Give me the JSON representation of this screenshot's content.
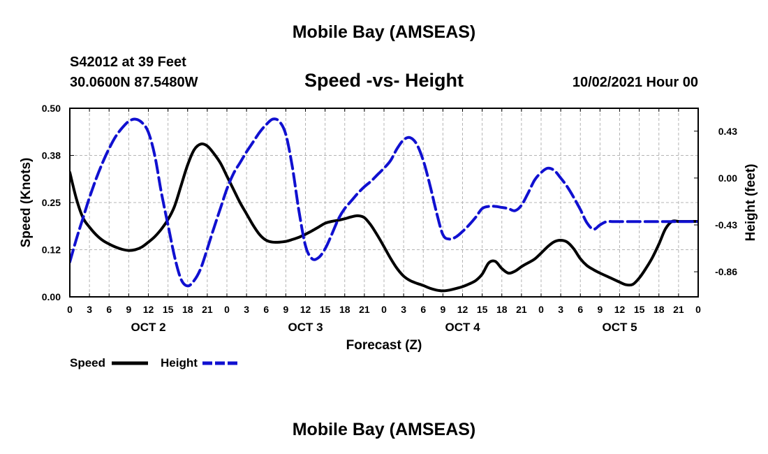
{
  "header": {
    "title": "Mobile Bay (AMSEAS)",
    "station": "S42012 at 39 Feet",
    "coords": "30.0600N  87.5480W",
    "chart_title": "Speed -vs- Height",
    "datetime": "10/02/2021 Hour 00"
  },
  "footer": {
    "title": "Mobile Bay (AMSEAS)"
  },
  "legend": {
    "speed_label": "Speed",
    "height_label": "Height"
  },
  "colors": {
    "speed": "#000000",
    "height": "#1010d0",
    "grid": "#b4b4b4"
  },
  "chart_data": {
    "type": "line",
    "title": "Speed -vs- Height",
    "xlabel": "Forecast (Z)",
    "ylabel_left": "Speed (Knots)",
    "ylabel_right": "Height (feet)",
    "x_range_hours": [
      0,
      96
    ],
    "ylim_left": [
      0,
      0.5
    ],
    "ylim_right": [
      -1.09,
      0.64
    ],
    "left_ticks": [
      "0.00",
      "0.12",
      "0.25",
      "0.38",
      "0.50"
    ],
    "left_tick_values": [
      0,
      0.125,
      0.25,
      0.375,
      0.5
    ],
    "right_ticks": [
      "-0.86",
      "-0.43",
      "0.00",
      "0.43"
    ],
    "right_tick_values": [
      -0.86,
      -0.43,
      0.0,
      0.43
    ],
    "x_ticks": [
      "0",
      "3",
      "6",
      "9",
      "12",
      "15",
      "18",
      "21",
      "0",
      "3",
      "6",
      "9",
      "12",
      "15",
      "18",
      "21",
      "0",
      "3",
      "6",
      "9",
      "12",
      "15",
      "18",
      "21",
      "0",
      "3",
      "6",
      "9",
      "12",
      "15",
      "18",
      "21",
      "0"
    ],
    "x_tick_hours": [
      0,
      3,
      6,
      9,
      12,
      15,
      18,
      21,
      24,
      27,
      30,
      33,
      36,
      39,
      42,
      45,
      48,
      51,
      54,
      57,
      60,
      63,
      66,
      69,
      72,
      75,
      78,
      81,
      84,
      87,
      90,
      93,
      96
    ],
    "day_labels": [
      "OCT 2",
      "OCT 3",
      "OCT 4",
      "OCT 5"
    ],
    "day_label_hours": [
      12,
      36,
      60,
      84
    ],
    "grid": true,
    "series": [
      {
        "name": "Speed",
        "axis": "left",
        "style": "solid",
        "x": [
          0,
          1,
          2,
          3,
          4,
          5,
          6,
          7,
          8,
          9,
          10,
          11,
          12,
          13,
          14,
          15,
          16,
          17,
          18,
          19,
          20,
          21,
          22,
          23,
          24,
          25,
          26,
          27,
          28,
          29,
          30,
          31,
          32,
          33,
          34,
          35,
          36,
          37,
          38,
          39,
          40,
          41,
          42,
          43,
          44,
          45,
          46,
          47,
          48,
          49,
          50,
          51,
          52,
          53,
          54,
          55,
          56,
          57,
          58,
          59,
          60,
          61,
          62,
          63,
          64,
          65,
          66,
          67,
          68,
          69,
          70,
          71,
          72,
          73,
          74,
          75,
          76,
          77,
          78,
          79,
          80,
          81,
          82,
          83,
          84,
          85,
          86,
          87,
          88,
          89,
          90,
          91,
          92,
          93,
          94,
          95,
          96
        ],
        "values": [
          0.33,
          0.26,
          0.21,
          0.185,
          0.165,
          0.15,
          0.14,
          0.132,
          0.126,
          0.123,
          0.125,
          0.132,
          0.145,
          0.16,
          0.18,
          0.205,
          0.24,
          0.295,
          0.35,
          0.39,
          0.405,
          0.4,
          0.38,
          0.355,
          0.32,
          0.285,
          0.25,
          0.22,
          0.19,
          0.165,
          0.15,
          0.145,
          0.145,
          0.147,
          0.152,
          0.158,
          0.166,
          0.175,
          0.185,
          0.195,
          0.2,
          0.203,
          0.207,
          0.212,
          0.215,
          0.21,
          0.19,
          0.163,
          0.133,
          0.102,
          0.075,
          0.055,
          0.043,
          0.036,
          0.03,
          0.023,
          0.018,
          0.016,
          0.018,
          0.022,
          0.027,
          0.034,
          0.043,
          0.06,
          0.09,
          0.094,
          0.075,
          0.063,
          0.068,
          0.08,
          0.09,
          0.1,
          0.116,
          0.133,
          0.146,
          0.15,
          0.145,
          0.127,
          0.101,
          0.083,
          0.072,
          0.063,
          0.055,
          0.047,
          0.039,
          0.032,
          0.033,
          0.05,
          0.075,
          0.104,
          0.14,
          0.18,
          0.2,
          0.2,
          0.2,
          0.2,
          0.2
        ]
      },
      {
        "name": "Height",
        "axis": "right",
        "style": "dashed",
        "x": [
          0,
          1,
          2,
          3,
          4,
          5,
          6,
          7,
          8,
          9,
          10,
          11,
          12,
          13,
          14,
          15,
          16,
          17,
          18,
          19,
          20,
          21,
          22,
          23,
          24,
          25,
          26,
          27,
          28,
          29,
          30,
          31,
          32,
          33,
          34,
          35,
          36,
          37,
          38,
          39,
          40,
          41,
          42,
          43,
          44,
          45,
          46,
          47,
          48,
          49,
          50,
          51,
          52,
          53,
          54,
          55,
          56,
          57,
          58,
          59,
          60,
          61,
          62,
          63,
          64,
          65,
          66,
          67,
          68,
          69,
          70,
          71,
          72,
          73,
          74,
          75,
          76,
          77,
          78,
          79,
          80,
          81,
          82,
          83,
          84,
          85,
          86,
          87,
          88,
          89,
          90,
          91,
          92,
          93,
          94,
          95,
          96
        ],
        "values": [
          -0.77,
          -0.56,
          -0.37,
          -0.18,
          -0.01,
          0.14,
          0.27,
          0.38,
          0.46,
          0.52,
          0.54,
          0.51,
          0.42,
          0.2,
          -0.14,
          -0.43,
          -0.72,
          -0.93,
          -0.99,
          -0.94,
          -0.83,
          -0.65,
          -0.46,
          -0.28,
          -0.1,
          0.04,
          0.14,
          0.24,
          0.33,
          0.42,
          0.49,
          0.54,
          0.52,
          0.4,
          0.1,
          -0.3,
          -0.62,
          -0.74,
          -0.73,
          -0.65,
          -0.52,
          -0.38,
          -0.28,
          -0.21,
          -0.14,
          -0.08,
          -0.03,
          0.03,
          0.09,
          0.16,
          0.27,
          0.35,
          0.37,
          0.31,
          0.16,
          -0.06,
          -0.31,
          -0.52,
          -0.56,
          -0.54,
          -0.49,
          -0.43,
          -0.36,
          -0.28,
          -0.26,
          -0.26,
          -0.27,
          -0.28,
          -0.3,
          -0.25,
          -0.14,
          -0.02,
          0.05,
          0.09,
          0.07,
          0.0,
          -0.08,
          -0.18,
          -0.29,
          -0.41,
          -0.47,
          -0.43,
          -0.4,
          -0.4,
          -0.4,
          -0.4,
          -0.4,
          -0.4,
          -0.4,
          -0.4,
          -0.4,
          -0.4,
          -0.4,
          -0.4,
          -0.4,
          -0.4,
          -0.4
        ]
      }
    ]
  }
}
